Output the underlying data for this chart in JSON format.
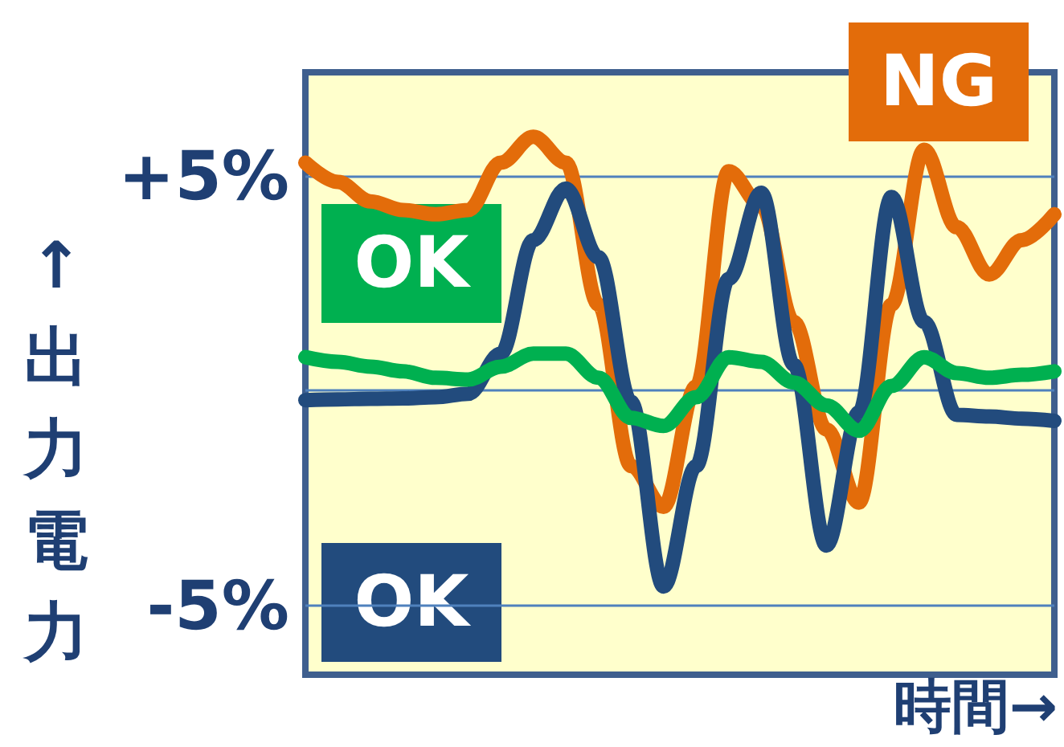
{
  "chart_data": {
    "type": "line",
    "xlabel": "時間→",
    "ylabel": "↑出力電力",
    "categories": [
      null,
      null,
      null,
      null,
      null,
      null,
      null,
      null,
      null,
      null,
      null,
      null,
      null,
      null,
      null,
      null,
      null,
      null,
      null,
      null,
      null,
      null,
      null,
      null
    ],
    "series": [
      {
        "name": "NG",
        "color": "#e36c0a",
        "values": [
          5.3,
          4.85,
          4.4,
          4.2,
          4.1,
          4.2,
          5.3,
          5.9,
          5.3,
          2.0,
          -1.75,
          -2.7,
          0.1,
          5.1,
          4.3,
          1.6,
          -0.9,
          -2.6,
          2.0,
          5.6,
          3.8,
          2.7,
          3.5,
          4.1
        ]
      },
      {
        "name": "OK",
        "color": "#224b7d",
        "values": [
          -0.22,
          -0.2,
          -0.19,
          -0.18,
          -0.15,
          -0.07,
          0.86,
          3.5,
          4.7,
          3.1,
          -0.26,
          -4.55,
          -1.75,
          2.6,
          4.6,
          0.6,
          -3.6,
          -0.5,
          4.5,
          1.6,
          -0.56,
          -0.6,
          -0.65,
          -0.7
        ]
      },
      {
        "name": "OK",
        "color": "#00b050",
        "values": [
          0.78,
          0.67,
          0.56,
          0.45,
          0.3,
          0.26,
          0.56,
          0.86,
          0.86,
          0.3,
          -0.63,
          -0.82,
          -0.15,
          0.78,
          0.67,
          0.19,
          -0.34,
          -0.93,
          0.11,
          0.78,
          0.41,
          0.3,
          0.37,
          0.45
        ]
      }
    ],
    "ylim": [
      -6.6,
      7.4
    ],
    "yticks": [
      {
        "value": 5,
        "label": "+5%"
      },
      {
        "value": 0,
        "label": null
      },
      {
        "value": -5,
        "label": "-5%"
      }
    ],
    "grid": "y",
    "marker": "none",
    "tick_labels": "y"
  }
}
